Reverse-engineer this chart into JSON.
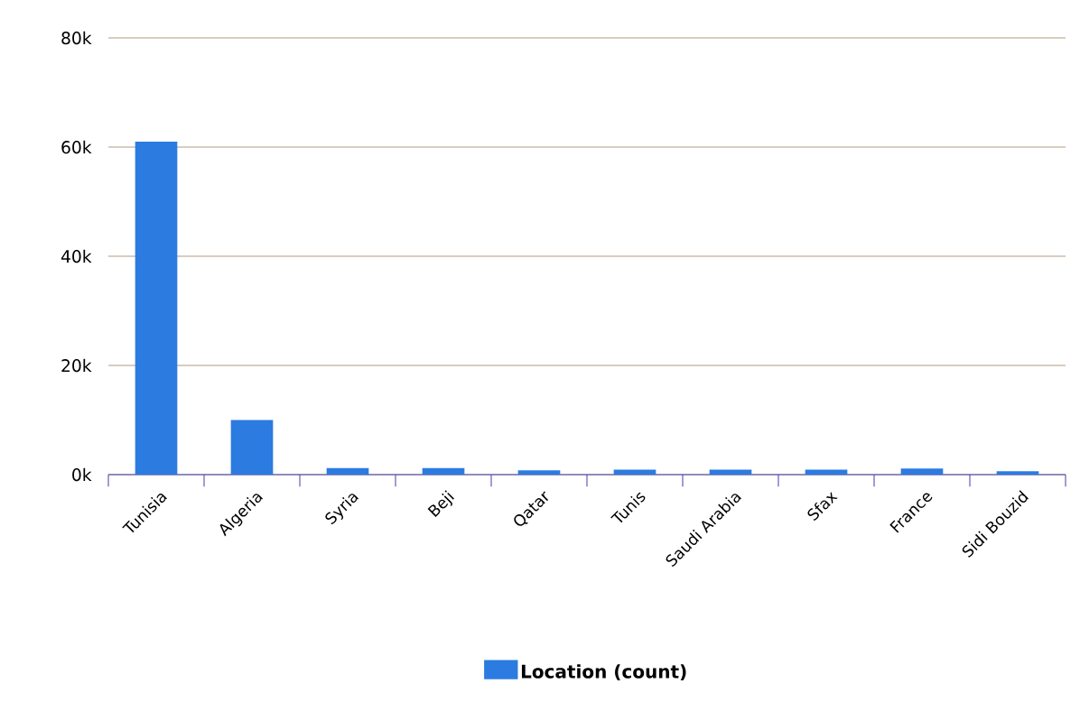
{
  "chart_data": {
    "type": "bar",
    "categories": [
      "Tunisia",
      "Algeria",
      "Syria",
      "Beji",
      "Qatar",
      "Tunis",
      "Saudi Arabia",
      "Sfax",
      "France",
      "Sidi Bouzid"
    ],
    "series": [
      {
        "name": "Location (count)",
        "color": "#2b7be0",
        "values": [
          61000,
          10000,
          1200,
          1200,
          800,
          900,
          900,
          900,
          1100,
          600
        ]
      }
    ],
    "ylim": [
      0,
      80000
    ],
    "yticks": [
      {
        "value": 0,
        "label": "0k"
      },
      {
        "value": 20000,
        "label": "20k"
      },
      {
        "value": 40000,
        "label": "40k"
      },
      {
        "value": 60000,
        "label": "60k"
      },
      {
        "value": 80000,
        "label": "80k"
      }
    ],
    "grid": "y",
    "legend": "bottom"
  }
}
